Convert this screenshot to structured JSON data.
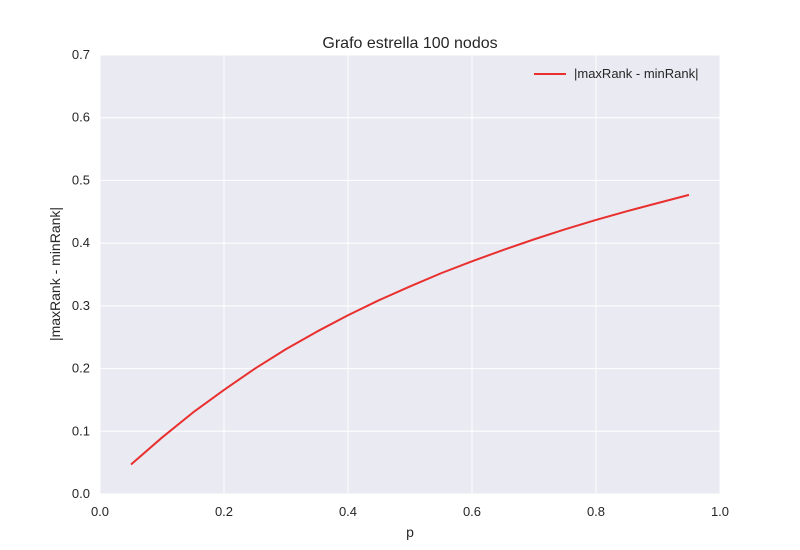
{
  "chart_data": {
    "type": "line",
    "title": "Grafo estrella 100 nodos",
    "xlabel": "p",
    "ylabel": "|maxRank - minRank|",
    "xlim": [
      0.0,
      1.0
    ],
    "ylim": [
      0.0,
      0.7
    ],
    "xticks": [
      "0.0",
      "0.2",
      "0.4",
      "0.6",
      "0.8",
      "1.0"
    ],
    "yticks": [
      "0.0",
      "0.1",
      "0.2",
      "0.3",
      "0.4",
      "0.5",
      "0.6",
      "0.7"
    ],
    "grid": true,
    "legend_position": "top-right",
    "background_color": "#eaeaf2",
    "series": [
      {
        "name": "|maxRank - minRank|",
        "color": "#e8302f",
        "x": [
          0.05,
          0.1,
          0.15,
          0.2,
          0.25,
          0.3,
          0.35,
          0.4,
          0.45,
          0.5,
          0.55,
          0.6,
          0.65,
          0.7,
          0.75,
          0.8,
          0.85,
          0.9,
          0.95
        ],
        "y": [
          0.047,
          0.09,
          0.13,
          0.166,
          0.2,
          0.231,
          0.259,
          0.285,
          0.309,
          0.331,
          0.352,
          0.371,
          0.389,
          0.406,
          0.422,
          0.437,
          0.451,
          0.464,
          0.477
        ]
      }
    ]
  }
}
